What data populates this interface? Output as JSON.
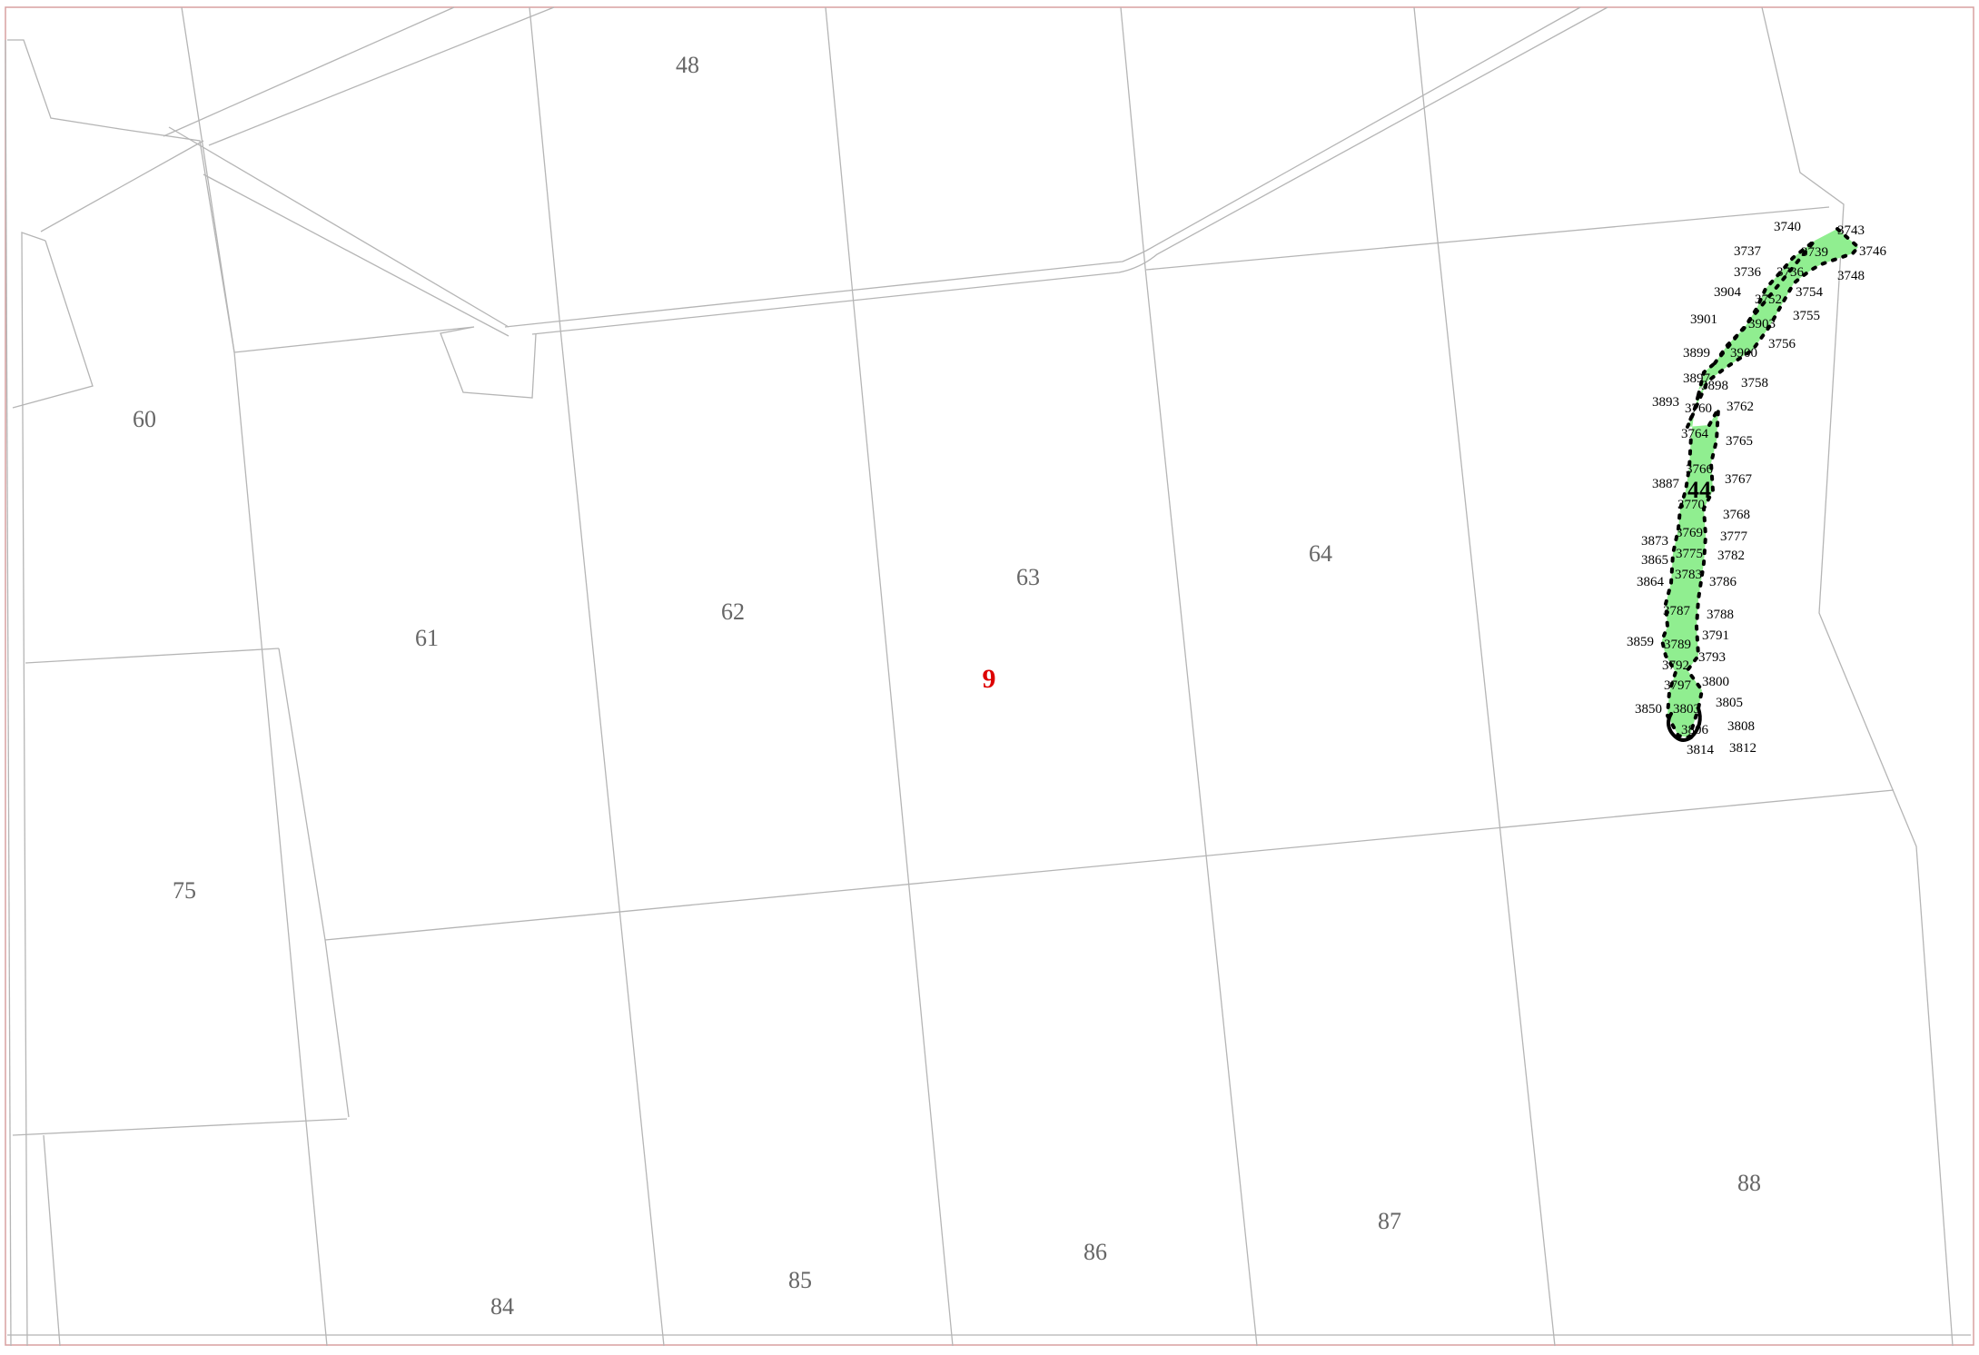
{
  "colors": {
    "background": "#ffffff",
    "frame": "#d9a0a0",
    "boundary_line": "#b5b5b5",
    "parcel_number_text": "#666666",
    "block_number_text": "#dd0000",
    "highlight_fill": "#90ee90",
    "highlight_outline": "#000000"
  },
  "block_number": "9",
  "parcels": [
    {
      "id": "48"
    },
    {
      "id": "60"
    },
    {
      "id": "61"
    },
    {
      "id": "62"
    },
    {
      "id": "63"
    },
    {
      "id": "64"
    },
    {
      "id": "75"
    },
    {
      "id": "84"
    },
    {
      "id": "85"
    },
    {
      "id": "86"
    },
    {
      "id": "87"
    },
    {
      "id": "88"
    }
  ],
  "highlighted_plot": {
    "number": "44",
    "vertices": [
      "3740",
      "3743",
      "3737",
      "3739",
      "3746",
      "3736",
      "3736",
      "3748",
      "3904",
      "3754",
      "3752",
      "3901",
      "3903",
      "3755",
      "3899",
      "3900",
      "3756",
      "3897",
      "3898",
      "3758",
      "3893",
      "3760",
      "3762",
      "3764",
      "3765",
      "3766",
      "3887",
      "3767",
      "3770",
      "3768",
      "3873",
      "3769",
      "3777",
      "3865",
      "3775",
      "3782",
      "3864",
      "3783",
      "3786",
      "3787",
      "3788",
      "3859",
      "3791",
      "3789",
      "3793",
      "3792",
      "3797",
      "3800",
      "3850",
      "3803",
      "3805",
      "3806",
      "3808",
      "3814",
      "3812"
    ]
  }
}
